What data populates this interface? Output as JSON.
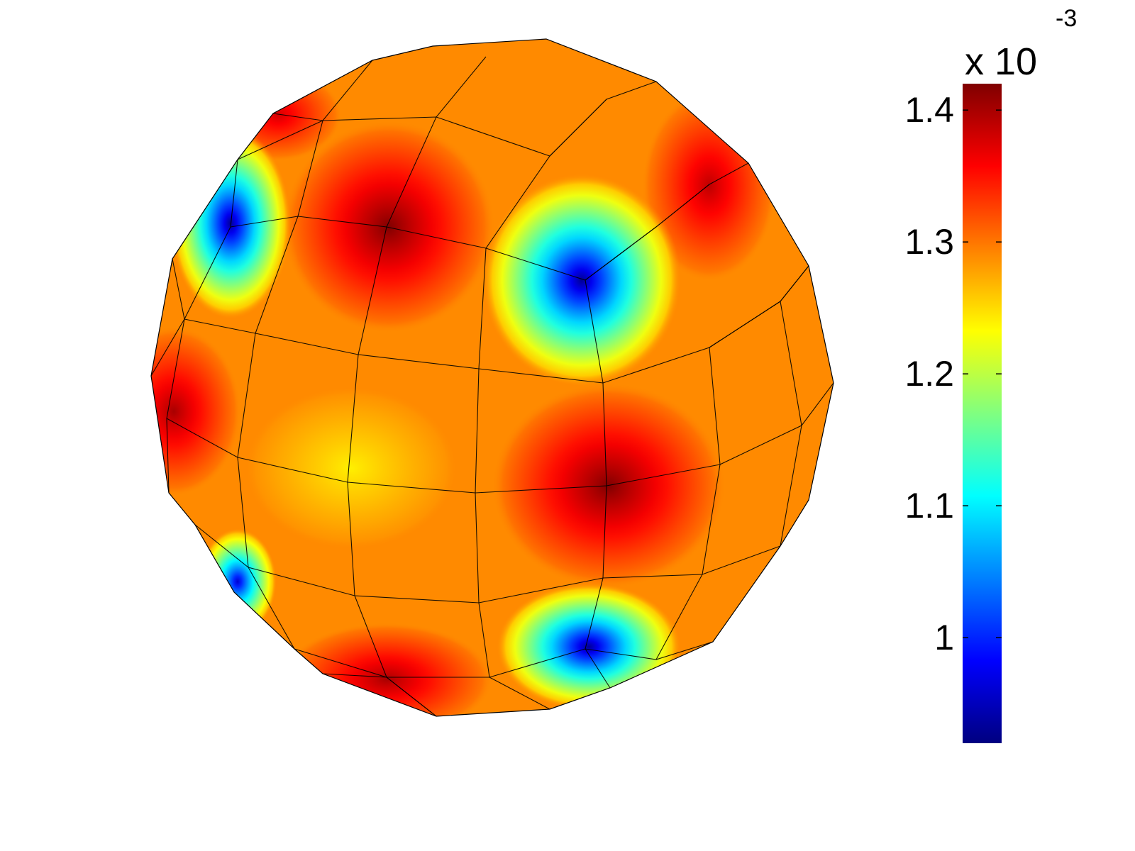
{
  "chart_data": {
    "type": "heatmap",
    "surface": "sphere",
    "colormap": "jet",
    "colorbar": {
      "min": 0.92,
      "max": 1.42,
      "ticks": [
        1,
        1.1,
        1.2,
        1.3,
        1.4
      ],
      "tick_labels": [
        "1",
        "1.1",
        "1.2",
        "1.3",
        "1.4"
      ],
      "multiplier_base": "x 10",
      "multiplier_exponent": "-3",
      "placement": "right"
    },
    "background_value": 1.29,
    "hotspots": [
      {
        "kind": "max",
        "value": 1.42,
        "region": "upper-center"
      },
      {
        "kind": "max",
        "value": 1.42,
        "region": "lower-right"
      },
      {
        "kind": "max",
        "value": 1.4,
        "region": "left edge"
      },
      {
        "kind": "max",
        "value": 1.4,
        "region": "bottom"
      },
      {
        "kind": "max",
        "value": 1.39,
        "region": "upper-right"
      },
      {
        "kind": "max",
        "value": 1.38,
        "region": "top-left edge"
      },
      {
        "kind": "min",
        "value": 0.93,
        "region": "upper-right-center"
      },
      {
        "kind": "min",
        "value": 0.93,
        "region": "upper-left"
      },
      {
        "kind": "min",
        "value": 0.93,
        "region": "bottom-center"
      },
      {
        "kind": "min",
        "value": 0.96,
        "region": "lower-left edge"
      },
      {
        "kind": "mid",
        "value": 1.24,
        "region": "center-left"
      }
    ]
  }
}
